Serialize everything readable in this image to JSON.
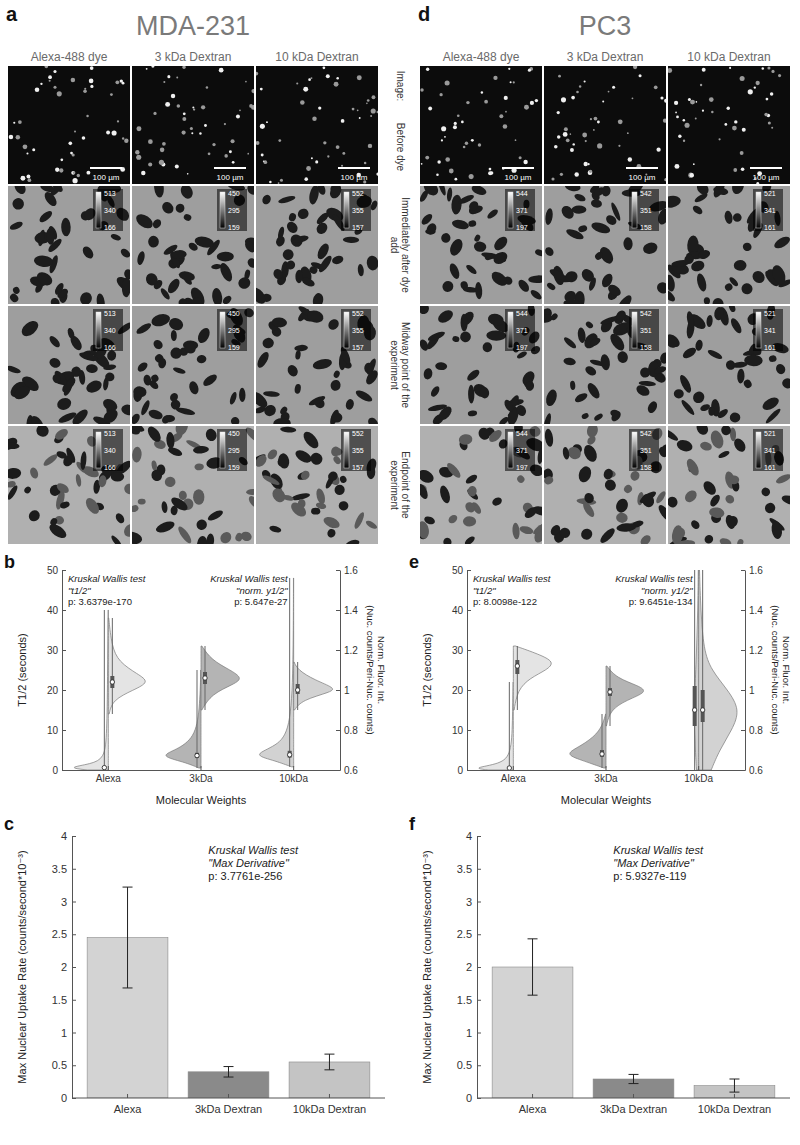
{
  "figure": {
    "panels": [
      {
        "letter": "a",
        "title": "MDA-231",
        "columns": [
          "Alexa-488 dye",
          "3 kDa Dextran",
          "10 kDa Dextran"
        ],
        "scale_bar": "100 µm",
        "colorbar_ticks": [
          [
            513,
            340,
            166
          ],
          [
            450,
            295,
            159
          ],
          [
            552,
            355,
            157
          ]
        ]
      },
      {
        "letter": "d",
        "title": "PC3",
        "columns": [
          "Alexa-488 dye",
          "3 kDa Dextran",
          "10 kDa Dextran"
        ],
        "scale_bar": "100 µm",
        "colorbar_ticks": [
          [
            544,
            371,
            197
          ],
          [
            542,
            351,
            158
          ],
          [
            521,
            341,
            161
          ]
        ]
      }
    ],
    "row_header": "Image:",
    "rows": [
      "Before dye",
      "Immediately after dye add",
      "Midway point of the experiment",
      "Endpoint of the experiment"
    ]
  },
  "chart_data": [
    {
      "panel": "b",
      "type": "violin",
      "categories": [
        "Alexa",
        "3kDa",
        "10kDa"
      ],
      "xlabel": "Molecular Weights",
      "ylabel": "T1/2 (seconds)",
      "y2label": "Norm. Fluor. Int. (Nuc. counts/Peri-Nuc. counts)",
      "ylim": [
        0,
        50
      ],
      "yticks": [
        0,
        10,
        20,
        30,
        40,
        50
      ],
      "y2lim": [
        0.6,
        1.6
      ],
      "y2ticks": [
        0.6,
        0.8,
        1,
        1.2,
        1.4,
        1.6
      ],
      "annotations": [
        [
          "Kruskal Wallis test",
          "\"t1/2\"",
          "p: 3.6379e-170"
        ],
        [
          "Kruskal Wallis test",
          "\"norm. y1/2\"",
          "p: 5.647e-27"
        ]
      ],
      "series": [
        {
          "colors": [
            "#e4e4e4",
            "#b4b4b4",
            "#d2d2d2"
          ],
          "values": [
            0.6,
            3.6,
            3.8
          ],
          "q1": [
            0.4,
            3.0,
            3.1
          ],
          "q3": [
            0.9,
            4.3,
            4.8
          ],
          "min": [
            0,
            0.5,
            0.8
          ],
          "max": [
            40,
            25,
            48
          ],
          "density": [
            [
              [
                0,
                0.5
              ],
              [
                0.6,
                1
              ],
              [
                1.5,
                0.4
              ],
              [
                3,
                0.1
              ],
              [
                8,
                0.04
              ],
              [
                20,
                0.02
              ],
              [
                40,
                0.005
              ]
            ],
            [
              [
                0.5,
                0.05
              ],
              [
                2,
                0.4
              ],
              [
                3.5,
                1
              ],
              [
                5,
                0.6
              ],
              [
                8,
                0.15
              ],
              [
                15,
                0.03
              ],
              [
                25,
                0.005
              ]
            ],
            [
              [
                0.8,
                0.05
              ],
              [
                2.5,
                0.5
              ],
              [
                3.8,
                1
              ],
              [
                6,
                0.4
              ],
              [
                10,
                0.08
              ],
              [
                25,
                0.01
              ],
              [
                48,
                0.005
              ]
            ]
          ]
        },
        {
          "axis": "y2",
          "colors": [
            "#e4e4e4",
            "#b4b4b4",
            "#d2d2d2"
          ],
          "values": [
            1.04,
            1.06,
            1.0
          ],
          "q1": [
            1.01,
            1.03,
            0.98
          ],
          "q3": [
            1.07,
            1.09,
            1.03
          ],
          "min": [
            0.88,
            0.9,
            0.9
          ],
          "max": [
            1.36,
            1.22,
            1.14
          ],
          "density": [
            [
              [
                0.88,
                0.02
              ],
              [
                0.95,
                0.1
              ],
              [
                1.0,
                0.6
              ],
              [
                1.04,
                1
              ],
              [
                1.08,
                0.7
              ],
              [
                1.14,
                0.25
              ],
              [
                1.22,
                0.08
              ],
              [
                1.36,
                0.01
              ]
            ],
            [
              [
                0.9,
                0.02
              ],
              [
                0.98,
                0.25
              ],
              [
                1.03,
                0.8
              ],
              [
                1.06,
                1
              ],
              [
                1.1,
                0.7
              ],
              [
                1.15,
                0.25
              ],
              [
                1.22,
                0.02
              ]
            ],
            [
              [
                0.9,
                0.02
              ],
              [
                0.95,
                0.2
              ],
              [
                0.99,
                0.9
              ],
              [
                1.01,
                1
              ],
              [
                1.05,
                0.5
              ],
              [
                1.1,
                0.1
              ],
              [
                1.14,
                0.01
              ]
            ]
          ]
        }
      ]
    },
    {
      "panel": "c",
      "type": "bar",
      "categories": [
        "Alexa",
        "3kDa Dextran",
        "10kDa Dextran"
      ],
      "values": [
        2.45,
        0.4,
        0.55
      ],
      "errors": [
        0.77,
        0.08,
        0.12
      ],
      "colors": [
        "#d3d3d3",
        "#8a8a8a",
        "#c4c4c4"
      ],
      "ylabel": "Max Nuclear Uptake Rate (counts/second*10⁻³)",
      "ylim": [
        0,
        4
      ],
      "yticks": [
        0,
        0.5,
        1,
        1.5,
        2,
        2.5,
        3,
        3.5,
        4
      ],
      "annotations": [
        [
          "Kruskal Wallis test",
          "\"Max Derivative\"",
          "p: 3.7761e-256"
        ]
      ]
    },
    {
      "panel": "e",
      "type": "violin",
      "categories": [
        "Alexa",
        "3kDa",
        "10kDa"
      ],
      "xlabel": "Molecular Weights",
      "ylabel": "T1/2 (seconds)",
      "y2label": "Norm. Fluor. Int. (Nuc. counts/Peri-Nuc. counts)",
      "ylim": [
        0,
        50
      ],
      "yticks": [
        0,
        10,
        20,
        30,
        40,
        50
      ],
      "y2lim": [
        0.6,
        1.6
      ],
      "y2ticks": [
        0.6,
        0.8,
        1,
        1.2,
        1.4,
        1.6
      ],
      "annotations": [
        [
          "Kruskal Wallis test",
          "\"t1/2\"",
          "p: 8.0098e-122"
        ],
        [
          "Kruskal Wallis test",
          "\"norm. y1/2\"",
          "p: 9.6451e-134"
        ]
      ],
      "series": [
        {
          "colors": [
            "#e4e4e4",
            "#b4b4b4",
            "#d2d2d2"
          ],
          "values": [
            0.5,
            4,
            15
          ],
          "q1": [
            0.3,
            3.3,
            11
          ],
          "q3": [
            0.8,
            5,
            21
          ],
          "min": [
            0,
            0.5,
            0
          ],
          "max": [
            22,
            14,
            50
          ],
          "density": [
            [
              [
                0,
                0.6
              ],
              [
                0.5,
                1
              ],
              [
                1.5,
                0.3
              ],
              [
                4,
                0.05
              ],
              [
                12,
                0.02
              ],
              [
                22,
                0.005
              ]
            ],
            [
              [
                0.5,
                0.05
              ],
              [
                2.5,
                0.6
              ],
              [
                4,
                1
              ],
              [
                6,
                0.6
              ],
              [
                9,
                0.2
              ],
              [
                12,
                0.06
              ],
              [
                14,
                0.01
              ]
            ],
            [
              [
                0,
                0.05
              ],
              [
                5,
                0.08
              ],
              [
                10,
                0.1
              ],
              [
                15,
                0.1
              ],
              [
                20,
                0.09
              ],
              [
                30,
                0.05
              ],
              [
                40,
                0.02
              ],
              [
                50,
                0.01
              ]
            ]
          ]
        },
        {
          "axis": "y2",
          "colors": [
            "#e4e4e4",
            "#b4b4b4",
            "#d2d2d2"
          ],
          "values": [
            1.12,
            0.99,
            0.9
          ],
          "q1": [
            1.08,
            0.97,
            0.84
          ],
          "q3": [
            1.15,
            1.01,
            1.0
          ],
          "min": [
            0.9,
            0.82,
            0.6
          ],
          "max": [
            1.22,
            1.12,
            1.6
          ],
          "density": [
            [
              [
                0.9,
                0.02
              ],
              [
                1.0,
                0.1
              ],
              [
                1.06,
                0.4
              ],
              [
                1.1,
                0.8
              ],
              [
                1.14,
                1
              ],
              [
                1.18,
                0.6
              ],
              [
                1.22,
                0.05
              ]
            ],
            [
              [
                0.82,
                0.01
              ],
              [
                0.9,
                0.1
              ],
              [
                0.95,
                0.5
              ],
              [
                0.99,
                1
              ],
              [
                1.02,
                0.8
              ],
              [
                1.06,
                0.25
              ],
              [
                1.12,
                0.02
              ]
            ],
            [
              [
                0.6,
                0.3
              ],
              [
                0.7,
                0.5
              ],
              [
                0.8,
                0.8
              ],
              [
                0.9,
                1
              ],
              [
                1.0,
                0.7
              ],
              [
                1.1,
                0.3
              ],
              [
                1.2,
                0.12
              ],
              [
                1.4,
                0.05
              ],
              [
                1.6,
                0.02
              ]
            ]
          ]
        }
      ]
    },
    {
      "panel": "f",
      "type": "bar",
      "categories": [
        "Alexa",
        "3kDa Dextran",
        "10kDa Dextran"
      ],
      "values": [
        2.0,
        0.29,
        0.19
      ],
      "errors": [
        0.43,
        0.07,
        0.1
      ],
      "colors": [
        "#d3d3d3",
        "#8a8a8a",
        "#c4c4c4"
      ],
      "ylabel": "Max Nuclear Uptake Rate (counts/second*10⁻³)",
      "ylim": [
        0,
        4
      ],
      "yticks": [
        0,
        0.5,
        1,
        1.5,
        2,
        2.5,
        3,
        3.5,
        4
      ],
      "annotations": [
        [
          "Kruskal Wallis test",
          "\"Max Derivative\"",
          "p: 5.9327e-119"
        ]
      ]
    }
  ]
}
